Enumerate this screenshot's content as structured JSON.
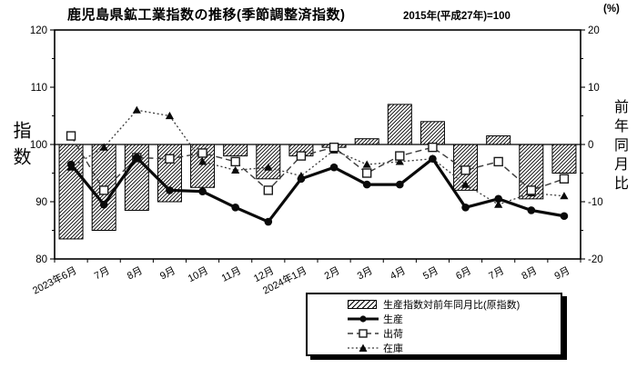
{
  "title": "鹿児島県鉱工業指数の推移(季節調整済指数)",
  "subtitle": "2015年(平成27年)=100",
  "chart_data": {
    "type": "combo-bar-line",
    "grid": false,
    "legend_position": "bottom-right",
    "categories": [
      "2023年6月",
      "7月",
      "8月",
      "9月",
      "10月",
      "11月",
      "12月",
      "2024年1月",
      "2月",
      "3月",
      "4月",
      "5月",
      "6月",
      "7月",
      "8月",
      "9月"
    ],
    "series": [
      {
        "name": "生産指数対前年同月比(原指数)",
        "type": "bar",
        "axis": "right",
        "style": "hatched-bar",
        "values": [
          -16.5,
          -15,
          -11.5,
          -10,
          -7.5,
          -2,
          -6,
          -2,
          -0.5,
          1,
          7,
          4,
          -8,
          1.5,
          -9.5,
          -5
        ]
      },
      {
        "name": "生産",
        "type": "line",
        "axis": "left",
        "style": "solid-circle",
        "values": [
          96.5,
          89.5,
          97.7,
          92,
          91.8,
          89,
          86.5,
          94,
          96,
          93,
          93,
          97.5,
          89,
          90.5,
          88.5,
          87.5
        ]
      },
      {
        "name": "出荷",
        "type": "line",
        "axis": "left",
        "style": "dashed-square",
        "values": [
          101.5,
          92,
          97.7,
          97.5,
          98.5,
          97,
          92,
          98,
          99.5,
          95,
          98,
          99.5,
          95.5,
          97,
          92,
          94
        ]
      },
      {
        "name": "在庫",
        "type": "line",
        "axis": "left",
        "style": "dotted-triangle",
        "values": [
          96,
          99.5,
          106,
          105,
          97,
          95.5,
          96,
          94.5,
          99,
          96.5,
          97,
          97.5,
          93,
          89.5,
          91.5,
          91
        ]
      }
    ],
    "left_axis": {
      "label": "指数",
      "min": 80,
      "max": 120,
      "major_ticks": [
        80,
        90,
        100,
        110,
        120
      ],
      "minor_step": 5
    },
    "right_axis": {
      "label": "前年同月比",
      "unit": "(%)",
      "min": -20,
      "max": 20,
      "major_ticks": [
        -20,
        -10,
        0,
        10,
        20
      ],
      "minor_step": 5
    },
    "baseline_value": 0
  }
}
